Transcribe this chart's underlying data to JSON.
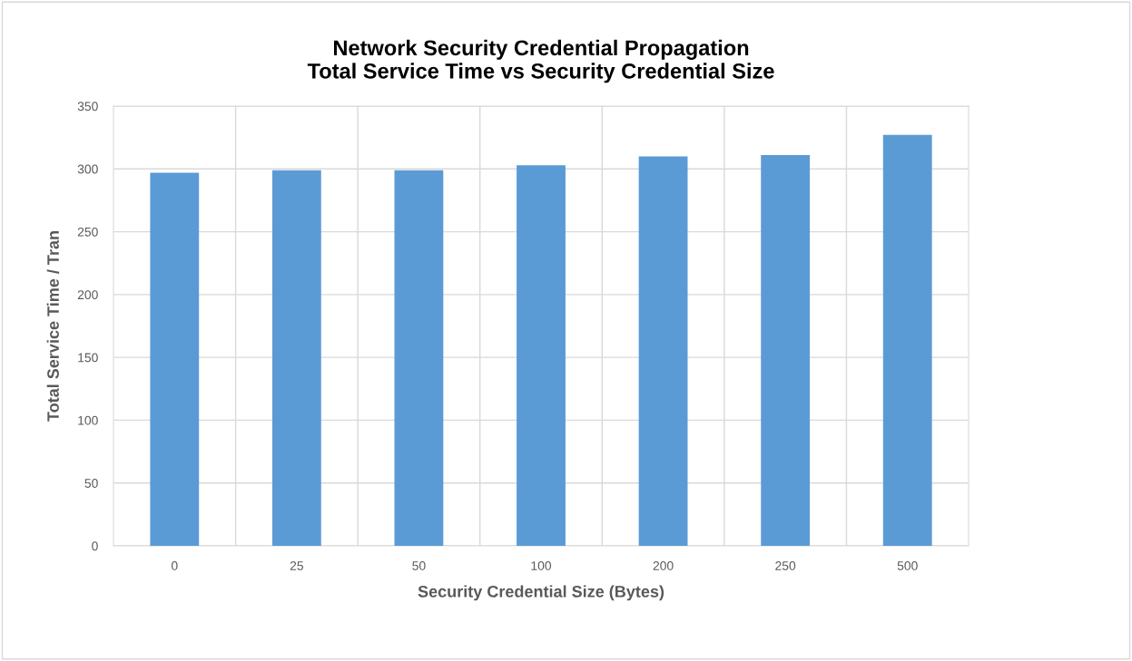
{
  "chart_data": {
    "type": "bar",
    "title": "Network Security Credential Propagation\nTotal Service Time vs Security Credential Size",
    "xlabel": "Security Credential Size (Bytes)",
    "ylabel": "Total Service Time / Tran",
    "categories": [
      "0",
      "25",
      "50",
      "100",
      "200",
      "250",
      "500"
    ],
    "values": [
      297,
      299,
      299,
      303,
      310,
      311,
      327
    ],
    "color": "#5b9bd5",
    "ylim": [
      0,
      350
    ],
    "yticks": [
      0,
      50,
      100,
      150,
      200,
      250,
      300,
      350
    ],
    "grid": true,
    "legend": false
  }
}
